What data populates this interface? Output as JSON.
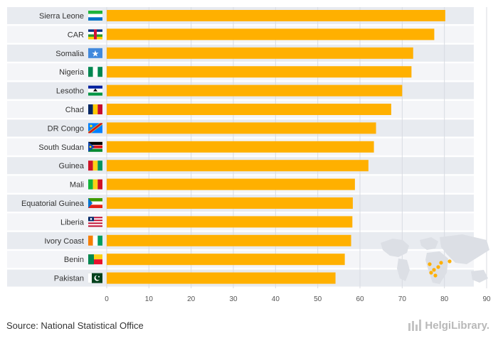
{
  "chart_data": {
    "type": "bar",
    "orientation": "horizontal",
    "categories": [
      "Sierra Leone",
      "CAR",
      "Somalia",
      "Nigeria",
      "Lesotho",
      "Chad",
      "DR Congo",
      "South Sudan",
      "Guinea",
      "Mali",
      "Equatorial Guinea",
      "Liberia",
      "Ivory Coast",
      "Benin",
      "Pakistan"
    ],
    "values": [
      80.2,
      77.6,
      72.6,
      72.2,
      70.0,
      67.4,
      63.8,
      63.3,
      62.0,
      58.8,
      58.3,
      58.2,
      57.9,
      56.4,
      54.2
    ],
    "xlim": [
      0,
      90
    ],
    "xticks": [
      0,
      10,
      20,
      30,
      40,
      50,
      60,
      70,
      80,
      90
    ],
    "xlabel": "",
    "ylabel": "",
    "title": "",
    "bar_color": "#FFB000",
    "row_band_colors": [
      "#e8ebf0",
      "#f4f5f8"
    ],
    "grid": true
  },
  "footer": {
    "source": "Source: National Statistical Office",
    "brand": "HelgiLibrary."
  },
  "icons": {
    "flags": [
      "sierra-leone-flag",
      "car-flag",
      "somalia-flag",
      "nigeria-flag",
      "lesotho-flag",
      "chad-flag",
      "dr-congo-flag",
      "south-sudan-flag",
      "guinea-flag",
      "mali-flag",
      "equatorial-guinea-flag",
      "liberia-flag",
      "ivory-coast-flag",
      "benin-flag",
      "pakistan-flag"
    ],
    "map": "world-map-icon",
    "brand": "helgilibrary-logo-icon"
  }
}
